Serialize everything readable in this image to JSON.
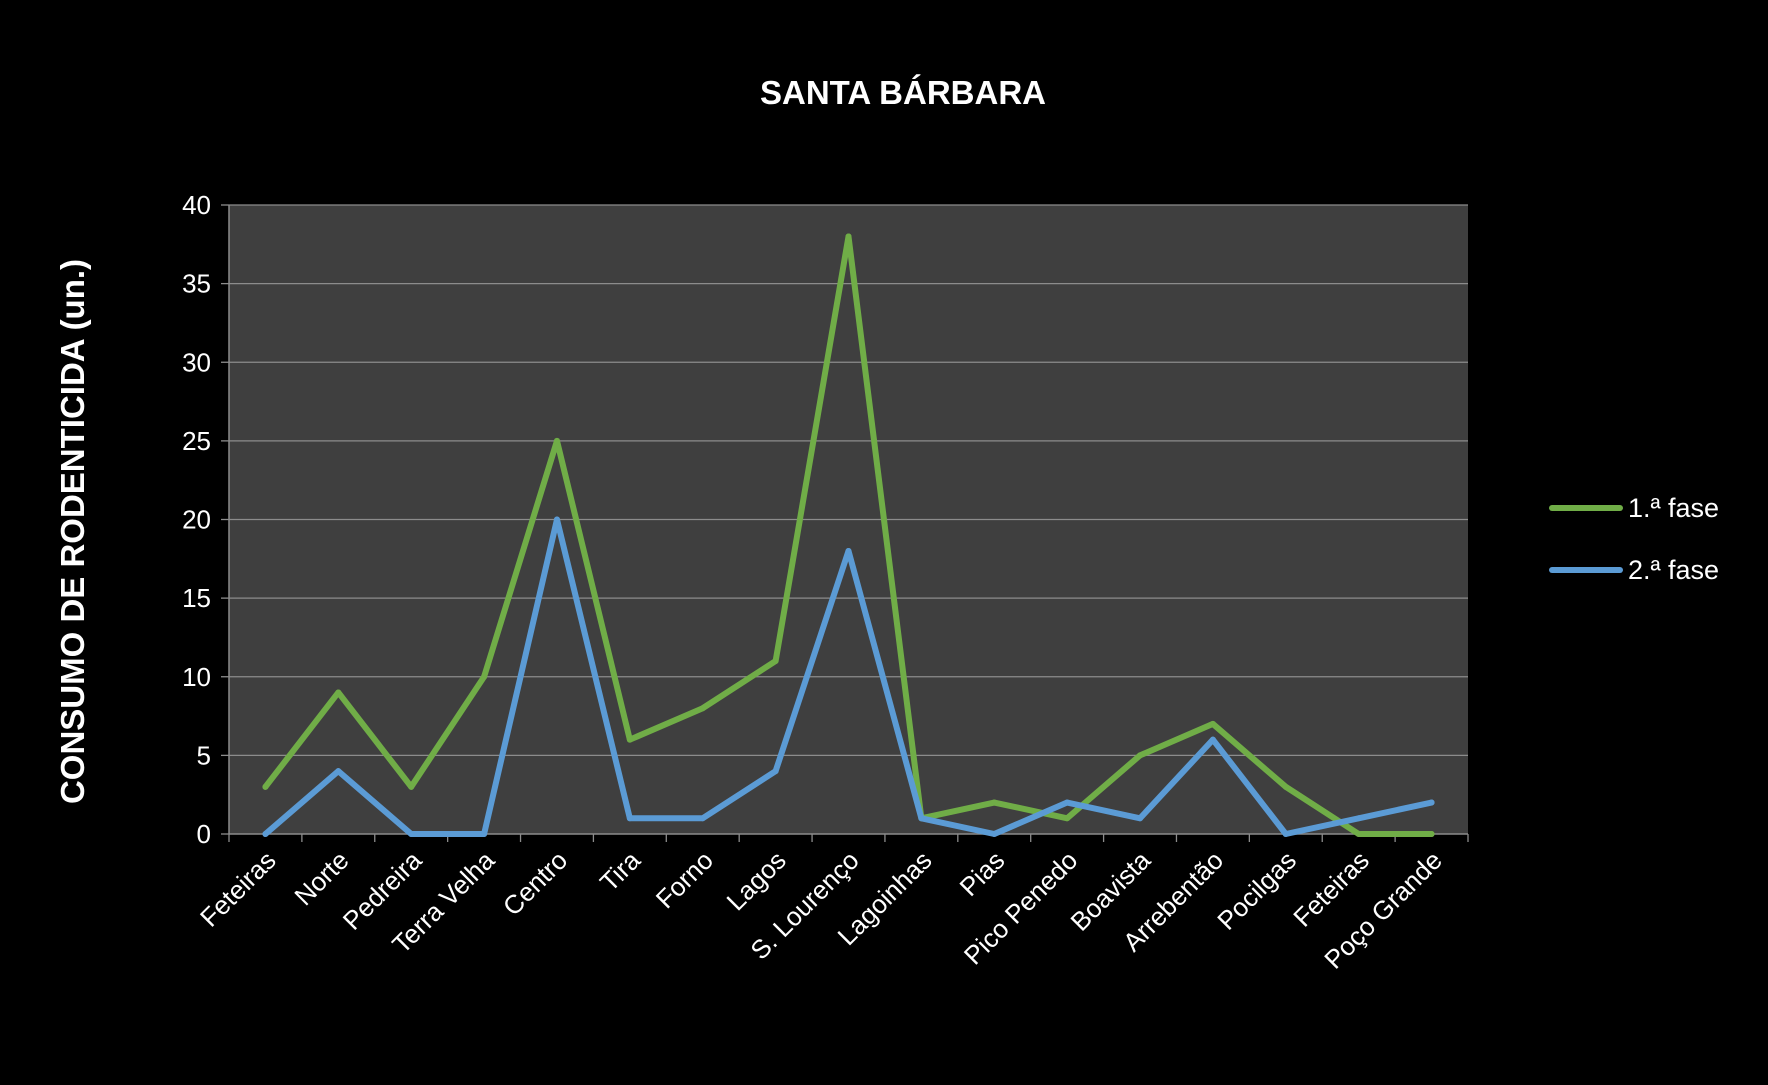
{
  "chart_data": {
    "type": "line",
    "title": "SANTA BÁRBARA",
    "xlabel": "",
    "ylabel": "CONSUMO DE RODENTICIDA (un.)",
    "ylim": [
      0,
      40
    ],
    "yticks": [
      0,
      5,
      10,
      15,
      20,
      25,
      30,
      35,
      40
    ],
    "grid": true,
    "legend_position": "right",
    "categories": [
      "Feteiras",
      "Norte",
      "Pedreira",
      "Terra Velha",
      "Centro",
      "Tira",
      "Forno",
      "Lagos",
      "S. Lourenço",
      "Lagoinhas",
      "Pias",
      "Pico Penedo",
      "Boavista",
      "Arrebentão",
      "Pocilgas",
      "Feteiras",
      "Poço Grande"
    ],
    "series": [
      {
        "name": "1.ª fase",
        "color": "#70ad47",
        "values": [
          3,
          9,
          3,
          10,
          25,
          6,
          8,
          11,
          38,
          1,
          2,
          1,
          5,
          7,
          3,
          0,
          0
        ]
      },
      {
        "name": "2.ª fase",
        "color": "#5b9bd5",
        "values": [
          0,
          4,
          0,
          0,
          20,
          1,
          1,
          4,
          18,
          1,
          0,
          2,
          1,
          6,
          0,
          1,
          2
        ]
      }
    ],
    "colors": {
      "background": "#000000",
      "plot_area": "#3f3f3f",
      "gridline": "#8c8c8c",
      "axis": "#8c8c8c",
      "text": "#ffffff"
    }
  }
}
